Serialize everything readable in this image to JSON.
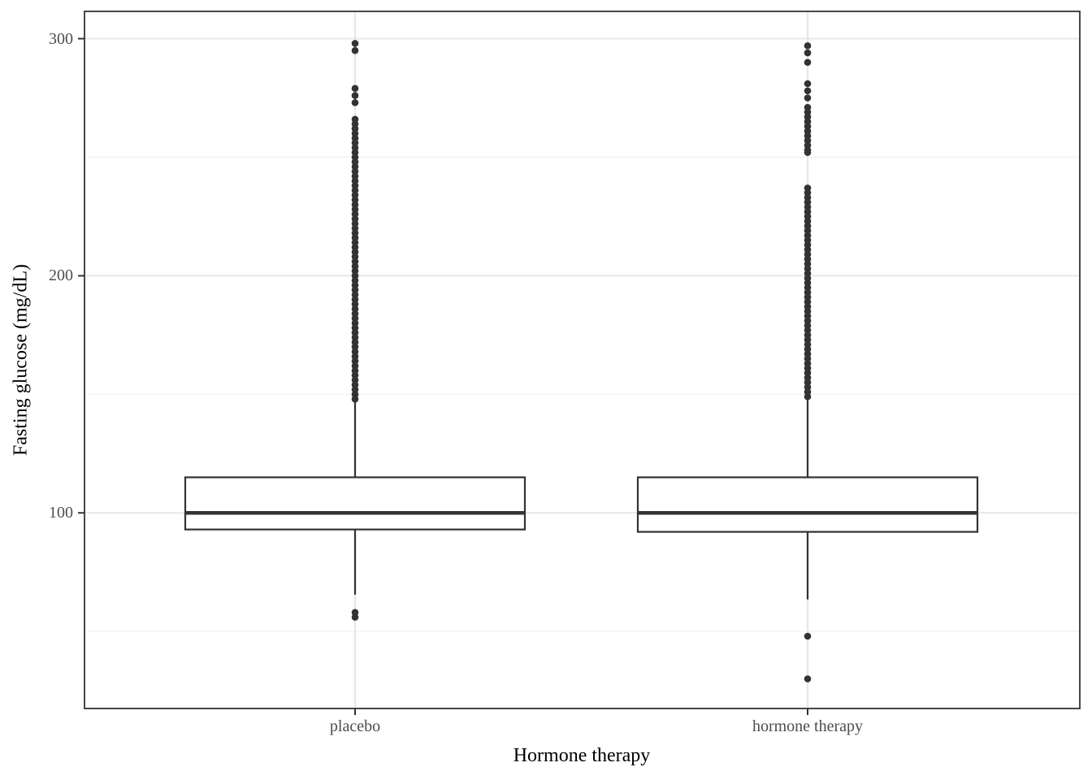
{
  "chart_data": {
    "type": "boxplot",
    "title": "",
    "xlabel": "Hormone therapy",
    "ylabel": "Fasting glucose (mg/dL)",
    "categories": [
      "placebo",
      "hormone therapy"
    ],
    "y_major_ticks": [
      100,
      200,
      300
    ],
    "y_minor_ticks": [
      50,
      150,
      250
    ],
    "ylim": [
      17.5,
      311.5
    ],
    "grid": true,
    "legend": "none",
    "series": [
      {
        "name": "placebo",
        "q1": 93,
        "median": 100,
        "q3": 115,
        "whisker_low": 65.5,
        "whisker_high": 148,
        "outliers_low": [
          58,
          56
        ],
        "outliers_high": [
          298,
          295,
          279,
          276,
          273,
          266,
          264,
          262,
          260,
          258,
          256,
          254,
          252,
          250,
          248,
          246,
          244,
          242,
          240,
          238,
          236,
          234,
          232,
          230,
          228,
          226,
          224,
          222,
          220,
          218,
          216,
          214,
          212,
          210,
          208,
          206,
          204,
          202,
          200,
          198,
          196,
          194,
          192,
          190,
          188,
          186,
          184,
          182,
          180,
          178,
          176,
          174,
          172,
          170,
          168,
          166,
          164,
          162,
          160,
          158,
          156,
          154,
          152,
          150,
          148
        ]
      },
      {
        "name": "hormone therapy",
        "q1": 92,
        "median": 100,
        "q3": 115,
        "whisker_low": 63.5,
        "whisker_high": 147.5,
        "outliers_low": [
          48,
          30
        ],
        "outliers_high": [
          297,
          294,
          290,
          281,
          278,
          275,
          271,
          269,
          267,
          265,
          263,
          261,
          259,
          257,
          255,
          253,
          252,
          237,
          235,
          233,
          231,
          229,
          227,
          225,
          223,
          221,
          219,
          217,
          215,
          213,
          211,
          209,
          207,
          205,
          203,
          201,
          199,
          197,
          195,
          193,
          191,
          189,
          187,
          185,
          183,
          181,
          179,
          177,
          175,
          173,
          171,
          169,
          167,
          165,
          163,
          161,
          159,
          157,
          155,
          153,
          151,
          149
        ]
      }
    ],
    "colors": {
      "box_stroke": "#333333",
      "box_fill": "#ffffff",
      "outlier_fill": "#333333",
      "grid_major": "#e8e8e8",
      "grid_minor": "#f0f0f0",
      "panel_border": "#333333",
      "tick_mark": "#333333",
      "axis_text": "#4d4d4d",
      "axis_title": "#000000",
      "panel_background": "#ffffff"
    }
  }
}
